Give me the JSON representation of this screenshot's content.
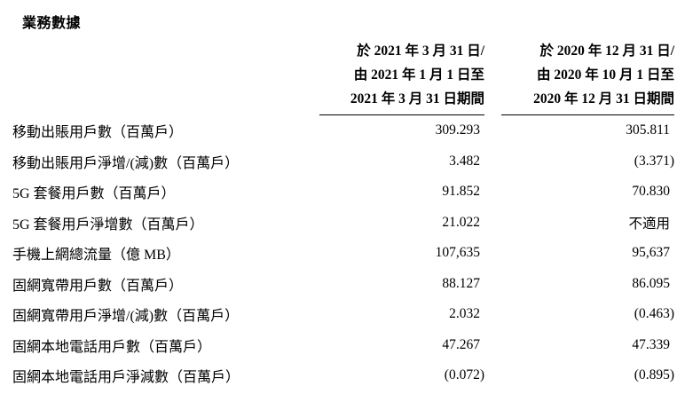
{
  "page": {
    "title": "業務數據"
  },
  "table": {
    "header": {
      "col1_lines": [
        "於 2021 年 3 月 31 日/",
        "由 2021 年 1 月 1 日至",
        "2021 年 3 月 31 日期間"
      ],
      "col2_lines": [
        "於 2020 年 12 月 31 日/",
        "由 2020 年 10 月 1 日至",
        "2020 年 12 月 31 日期間"
      ]
    },
    "rows": [
      {
        "label": "移動出賬用戶數（百萬戶）",
        "col1": "309.293",
        "col2": "305.811"
      },
      {
        "label": "移動出賬用戶淨增/(減)數（百萬戶）",
        "col1": "3.482",
        "col2": "(3.371)"
      },
      {
        "label": "5G 套餐用戶數（百萬戶）",
        "col1": "91.852",
        "col2": "70.830"
      },
      {
        "label": "5G 套餐用戶淨增數（百萬戶）",
        "col1": "21.022",
        "col2": "不適用"
      },
      {
        "label": "手機上網總流量（億 MB）",
        "col1": "107,635",
        "col2": "95,637"
      },
      {
        "label": "固網寬帶用戶數（百萬戶）",
        "col1": "88.127",
        "col2": "86.095"
      },
      {
        "label": "固網寬帶用戶淨增/(減)數（百萬戶）",
        "col1": "2.032",
        "col2": "(0.463)"
      },
      {
        "label": "固網本地電話用戶數（百萬戶）",
        "col1": "47.267",
        "col2": "47.339"
      },
      {
        "label": "固網本地電話用戶淨減數（百萬戶）",
        "col1": "(0.072)",
        "col2": "(0.895)"
      }
    ]
  }
}
